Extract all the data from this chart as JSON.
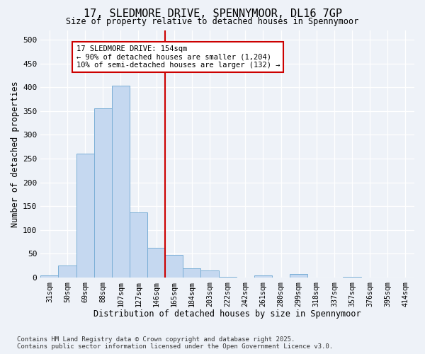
{
  "title": "17, SLEDMORE DRIVE, SPENNYMOOR, DL16 7GP",
  "subtitle": "Size of property relative to detached houses in Spennymoor",
  "xlabel": "Distribution of detached houses by size in Spennymoor",
  "ylabel": "Number of detached properties",
  "bar_color": "#c5d8f0",
  "bar_edge_color": "#7aaed6",
  "background_color": "#eef2f8",
  "grid_color": "#ffffff",
  "categories": [
    "31sqm",
    "50sqm",
    "69sqm",
    "88sqm",
    "107sqm",
    "127sqm",
    "146sqm",
    "165sqm",
    "184sqm",
    "203sqm",
    "222sqm",
    "242sqm",
    "261sqm",
    "280sqm",
    "299sqm",
    "318sqm",
    "337sqm",
    "357sqm",
    "376sqm",
    "395sqm",
    "414sqm"
  ],
  "values": [
    5,
    25,
    260,
    355,
    403,
    137,
    62,
    48,
    20,
    15,
    2,
    0,
    4,
    0,
    7,
    0,
    0,
    1,
    0,
    0,
    0
  ],
  "ylim": [
    0,
    520
  ],
  "yticks": [
    0,
    50,
    100,
    150,
    200,
    250,
    300,
    350,
    400,
    450,
    500
  ],
  "vline_x": 6.5,
  "vline_color": "#cc0000",
  "annot_line1": "17 SLEDMORE DRIVE: 154sqm",
  "annot_line2": "← 90% of detached houses are smaller (1,204)",
  "annot_line3": "10% of semi-detached houses are larger (132) →",
  "annotation_box_color": "#ffffff",
  "annotation_box_edge": "#cc0000",
  "footer1": "Contains HM Land Registry data © Crown copyright and database right 2025.",
  "footer2": "Contains public sector information licensed under the Open Government Licence v3.0."
}
